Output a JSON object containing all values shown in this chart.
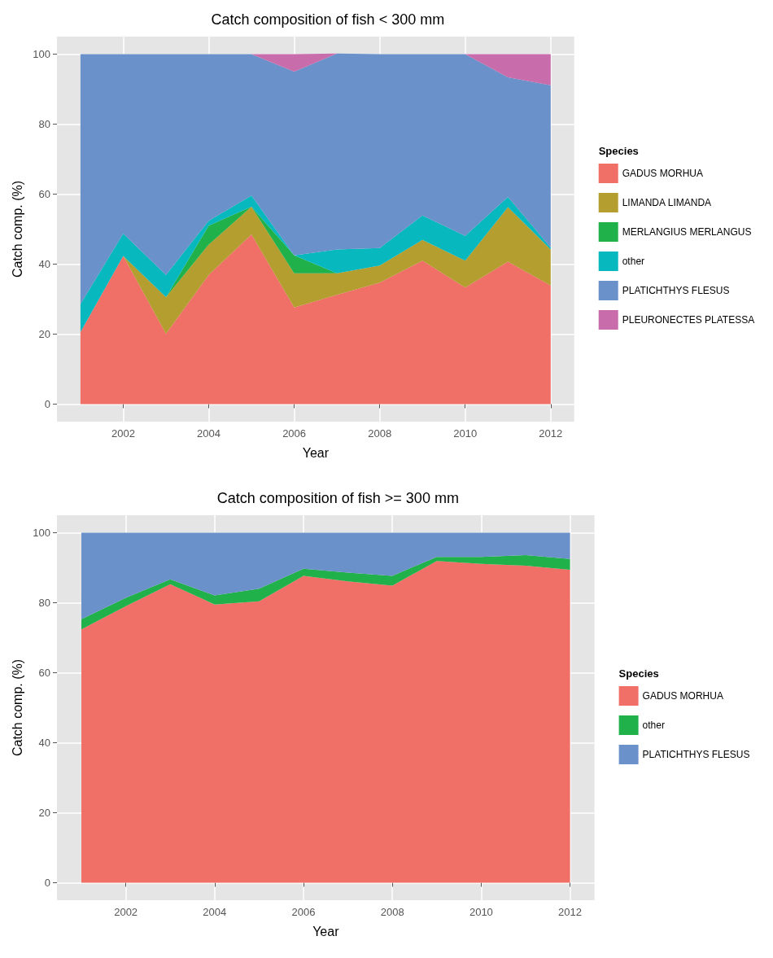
{
  "chart_data": [
    {
      "type": "area",
      "title": "Catch composition of fish < 300 mm",
      "xlabel": "Year",
      "ylabel": "Catch comp. (%)",
      "legend_title": "Species",
      "stacked": true,
      "grid": true,
      "legend": "right",
      "x": [
        2001,
        2002,
        2003,
        2004,
        2005,
        2006,
        2007,
        2008,
        2009,
        2010,
        2011,
        2012
      ],
      "xlim": [
        2000.45,
        2012.55
      ],
      "xticks": [
        2002,
        2004,
        2006,
        2008,
        2010,
        2012
      ],
      "ylim": [
        -5,
        105
      ],
      "yticks": [
        0,
        20,
        40,
        60,
        80,
        100
      ],
      "series": [
        {
          "name": "GADUS MORHUA",
          "color": "#f07067",
          "values": [
            20.6,
            42.3,
            20.1,
            36.9,
            48.5,
            27.6,
            31.2,
            34.7,
            41,
            33.3,
            40.7,
            33.9
          ]
        },
        {
          "name": "LIMANDA LIMANDA",
          "color": "#b39e2f",
          "values": [
            0,
            0,
            10.5,
            8.7,
            7.9,
            9.8,
            6.2,
            4.9,
            5.9,
            7.7,
            15.6,
            10.3
          ]
        },
        {
          "name": "MERLANGIUS MERLANGUS",
          "color": "#21b14b",
          "values": [
            0,
            0,
            0,
            5.4,
            0,
            5.1,
            0,
            0,
            0,
            0,
            0,
            0
          ]
        },
        {
          "name": "other",
          "color": "#07b8bf",
          "values": [
            8,
            6.4,
            6.3,
            1.4,
            3.2,
            0,
            6.8,
            5,
            7,
            7.1,
            2.9,
            0.5
          ]
        },
        {
          "name": "PLATICHTHYS FLESUS",
          "color": "#6a91ca",
          "values": [
            71.4,
            51.3,
            63.1,
            47.6,
            40.4,
            52.5,
            56,
            55.4,
            46.1,
            51.9,
            34.2,
            46.4
          ]
        },
        {
          "name": "PLEURONECTES PLATESSA",
          "color": "#c96cab",
          "values": [
            0,
            0,
            0,
            0,
            0,
            5,
            0,
            0,
            0,
            0,
            6.6,
            8.9
          ]
        }
      ]
    },
    {
      "type": "area",
      "title": "Catch composition of fish >= 300 mm",
      "xlabel": "Year",
      "ylabel": "Catch comp. (%)",
      "legend_title": "Species",
      "stacked": true,
      "grid": true,
      "legend": "right",
      "x": [
        2001,
        2002,
        2003,
        2004,
        2005,
        2006,
        2007,
        2008,
        2009,
        2010,
        2011,
        2012
      ],
      "xlim": [
        2000.45,
        2012.55
      ],
      "xticks": [
        2002,
        2004,
        2006,
        2008,
        2010,
        2012
      ],
      "ylim": [
        -5,
        105
      ],
      "yticks": [
        0,
        20,
        40,
        60,
        80,
        100
      ],
      "series": [
        {
          "name": "GADUS MORHUA",
          "color": "#f07067",
          "values": [
            72.4,
            79,
            85.3,
            79.5,
            80.4,
            87.7,
            86.1,
            84.9,
            91.9,
            91.1,
            90.6,
            89.4
          ]
        },
        {
          "name": "other",
          "color": "#21b14b",
          "values": [
            2.9,
            2.4,
            1.4,
            2.6,
            3.6,
            2,
            2.5,
            2.8,
            1.2,
            2,
            3,
            3.1
          ]
        },
        {
          "name": "PLATICHTHYS FLESUS",
          "color": "#6a91ca",
          "values": [
            24.7,
            18.6,
            13.3,
            17.9,
            16,
            10.3,
            11.4,
            12.3,
            6.9,
            6.9,
            6.4,
            7.5
          ]
        }
      ]
    }
  ]
}
